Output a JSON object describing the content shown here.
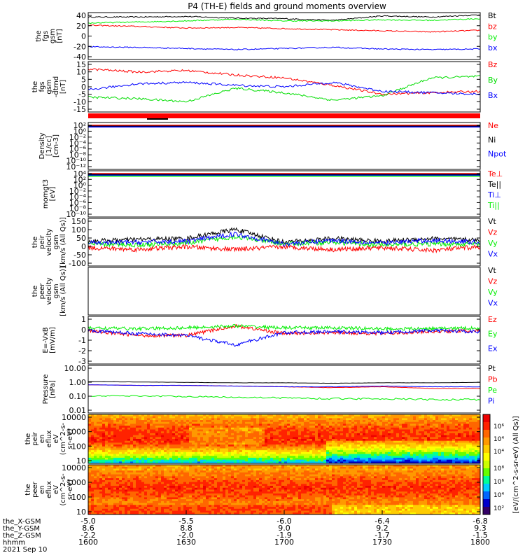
{
  "title": "P4 (TH-E) fields and ground moments overview",
  "colors": {
    "black": "#000000",
    "red": "#ff0000",
    "green": "#00ee00",
    "blue": "#0000ff",
    "mag_gsm_green": "#00dd00"
  },
  "chart_data": [
    {
      "type": "line",
      "panel": "fgs_gsm",
      "ylabel": [
        "the",
        "fgs",
        "gsm",
        "[nT]"
      ],
      "yticks": [
        "40",
        "20",
        "0",
        "-20",
        "-40"
      ],
      "ylim": [
        -40,
        45
      ],
      "x": [
        0,
        15,
        30,
        45,
        60,
        75,
        90,
        105,
        120
      ],
      "series": [
        {
          "name": "Bt",
          "color": "#000000",
          "values": [
            37,
            37,
            38,
            35,
            34,
            31,
            39,
            37,
            41
          ]
        },
        {
          "name": "bz",
          "color": "#ff0000",
          "values": [
            22,
            20,
            17,
            18,
            16,
            14,
            12,
            10,
            13
          ]
        },
        {
          "name": "by",
          "color": "#00ee00",
          "values": [
            26,
            28,
            30,
            33,
            30,
            30,
            32,
            31,
            34
          ]
        },
        {
          "name": "bx",
          "color": "#0000ff",
          "values": [
            -17,
            -18,
            -20,
            -22,
            -20,
            -18,
            -21,
            -22,
            -21
          ]
        }
      ]
    },
    {
      "type": "line",
      "panel": "fgs_gsm_detrended",
      "ylabel": [
        "the",
        "fgs",
        "gsm",
        "-dtrnd",
        "[nT]"
      ],
      "yticks": [
        "15",
        "10",
        "5",
        "0",
        "-5",
        "-10",
        "-15"
      ],
      "ylim": [
        -18,
        16
      ],
      "x": [
        0,
        15,
        30,
        45,
        60,
        75,
        90,
        105,
        120
      ],
      "series": [
        {
          "name": "Bz",
          "color": "#ff0000",
          "values": [
            11,
            9,
            10,
            7,
            5,
            0,
            -6,
            -5,
            -4
          ]
        },
        {
          "name": "By",
          "color": "#00dd00",
          "values": [
            -8,
            -9,
            -11,
            -2,
            -5,
            -10,
            -7,
            5,
            6
          ]
        },
        {
          "name": "Bx",
          "color": "#0000ff",
          "values": [
            -3,
            1,
            2,
            0,
            -1,
            2,
            -4,
            -5,
            -6
          ]
        }
      ]
    },
    {
      "type": "line",
      "panel": "density",
      "ylabel": [
        "Density",
        "[1/cc]",
        "[cm-3]"
      ],
      "yticks": [
        "10²",
        "10⁰",
        "10⁻²",
        "10⁻⁴",
        "10⁻⁶",
        "10⁻⁸",
        "10⁻¹⁰",
        "10⁻¹²"
      ],
      "ylim_log10": [
        -13,
        2.5
      ],
      "x": [
        0,
        60,
        120
      ],
      "series": [
        {
          "name": "Ne",
          "color": "#ff0000",
          "values": [
            0.6,
            0.6,
            0.6
          ]
        },
        {
          "name": "Ni",
          "color": "#000000",
          "values": [
            0.55,
            0.55,
            0.55
          ]
        },
        {
          "name": "Npot",
          "color": "#0000ff",
          "values": [
            0.5,
            0.5,
            0.5
          ]
        }
      ]
    },
    {
      "type": "line",
      "panel": "temperature",
      "ylabel": [
        "momgt3",
        "[eV]"
      ],
      "yticks": [
        "10⁴",
        "10²",
        "10⁰",
        "10⁻²",
        "10⁻⁴",
        "10⁻⁶",
        "10⁻⁸",
        "10⁻¹⁰"
      ],
      "ylim_log10": [
        -10.5,
        4.5
      ],
      "x": [
        0,
        60,
        120
      ],
      "series": [
        {
          "name": "Te⊥",
          "color": "#ff0000",
          "values": [
            4000,
            4000,
            4000
          ]
        },
        {
          "name": "Te||",
          "color": "#000000",
          "values": [
            3500,
            3500,
            3500
          ]
        },
        {
          "name": "Ti⊥",
          "color": "#0000ff",
          "values": [
            3000,
            3000,
            3000
          ]
        },
        {
          "name": "Ti||",
          "color": "#00ee00",
          "values": [
            2500,
            2500,
            2500
          ]
        }
      ]
    },
    {
      "type": "line",
      "panel": "peir_velocity",
      "ylabel": [
        "the",
        "peir",
        "velocity",
        "gsm",
        "[km/s (All Qs)]"
      ],
      "yticks": [
        "150",
        "100",
        "50",
        "0",
        "-50",
        "-100"
      ],
      "ylim": [
        -100,
        160
      ],
      "x": [
        0,
        15,
        30,
        45,
        60,
        75,
        90,
        105,
        120
      ],
      "series": [
        {
          "name": "Vt",
          "color": "#000000",
          "values": [
            35,
            45,
            50,
            100,
            30,
            50,
            35,
            50,
            40
          ]
        },
        {
          "name": "Vz",
          "color": "#ff0000",
          "values": [
            0,
            -10,
            5,
            -10,
            5,
            -10,
            0,
            -15,
            5
          ]
        },
        {
          "name": "Vy",
          "color": "#00ee00",
          "values": [
            20,
            15,
            25,
            60,
            20,
            30,
            15,
            20,
            20
          ]
        },
        {
          "name": "Vx",
          "color": "#0000ff",
          "values": [
            25,
            30,
            35,
            75,
            20,
            40,
            25,
            40,
            30
          ]
        }
      ]
    },
    {
      "type": "line",
      "panel": "peer_velocity",
      "ylabel": [
        "the",
        "peer",
        "velocity",
        "gsm",
        "[km/s (All Qs)]"
      ],
      "yticks": [],
      "x": [],
      "series": [
        {
          "name": "Vt",
          "color": "#000000",
          "values": []
        },
        {
          "name": "Vz",
          "color": "#ff0000",
          "values": []
        },
        {
          "name": "Vy",
          "color": "#00ee00",
          "values": []
        },
        {
          "name": "Vx",
          "color": "#0000ff",
          "values": []
        }
      ]
    },
    {
      "type": "line",
      "panel": "e_field",
      "ylabel": [
        "E=-VxB",
        "[mV/m]"
      ],
      "yticks": [
        "1",
        "0",
        "-1",
        "-2",
        "-3"
      ],
      "ylim": [
        -3.5,
        1.5
      ],
      "x": [
        0,
        15,
        30,
        45,
        60,
        75,
        90,
        105,
        120
      ],
      "series": [
        {
          "name": "Ez",
          "color": "#ff0000",
          "values": [
            0,
            -0.5,
            -0.5,
            0.5,
            -0.3,
            -0.2,
            -0.3,
            -0.1,
            0
          ]
        },
        {
          "name": "Ey",
          "color": "#00ee00",
          "values": [
            0.3,
            0.2,
            0.3,
            0.5,
            0.3,
            0.3,
            0.2,
            0.2,
            0.3
          ]
        },
        {
          "name": "Ex",
          "color": "#0000ff",
          "values": [
            0,
            -0.3,
            -0.5,
            -1.5,
            -0.2,
            -0.1,
            -0.2,
            0,
            -0.1
          ]
        }
      ]
    },
    {
      "type": "line",
      "panel": "pressure",
      "ylabel": [
        "Pressure",
        "[nPa]"
      ],
      "yticks": [
        "10.00",
        "1.00",
        "0.10",
        "0.01"
      ],
      "ylim_log10": [
        -2,
        1
      ],
      "x": [
        0,
        15,
        30,
        45,
        60,
        75,
        90,
        105,
        120
      ],
      "series": [
        {
          "name": "Pt",
          "color": "#000000",
          "values": [
            0.95,
            0.9,
            0.85,
            0.8,
            0.8,
            0.75,
            0.8,
            0.8,
            0.85
          ]
        },
        {
          "name": "Pb",
          "color": "#ff0000",
          "values": [
            0.6,
            0.55,
            0.55,
            0.5,
            0.45,
            0.4,
            0.45,
            0.35,
            0.35
          ]
        },
        {
          "name": "Pe",
          "color": "#00ee00",
          "values": [
            0.12,
            0.12,
            0.11,
            0.1,
            0.09,
            0.08,
            0.08,
            0.07,
            0.07
          ]
        },
        {
          "name": "Pi",
          "color": "#0000ff",
          "values": [
            0.6,
            0.55,
            0.55,
            0.5,
            0.45,
            0.45,
            0.5,
            0.45,
            0.45
          ]
        }
      ]
    },
    {
      "type": "heatmap",
      "panel": "peir_en_eflux",
      "ylabel": [
        "the",
        "peir",
        "en",
        "eflux",
        "eV",
        "(cm^2-s-",
        "sr-eV)"
      ],
      "yticks": [
        "10000",
        "1000",
        "100",
        "10"
      ],
      "ylim": [
        5,
        20000
      ]
    },
    {
      "type": "heatmap",
      "panel": "peer_en_eflux",
      "ylabel": [
        "the",
        "peer",
        "en",
        "eflux",
        "eV",
        "(cm^2-s-",
        "sr-eV)"
      ],
      "yticks": [
        "10000",
        "1000",
        "100",
        "10"
      ],
      "ylim": [
        5,
        20000
      ]
    }
  ],
  "colorbar": {
    "label": "[eV/(cm^2-s-sr-eV) (All Qs)]",
    "ticks_top": [
      "10⁶",
      "10⁴",
      "10⁴"
    ],
    "ticks_bottom": [
      "10⁸",
      "10⁶",
      "10⁴",
      "10²"
    ]
  },
  "x_axis": {
    "row_labels": [
      "the_X-GSM",
      "the_Y-GSM",
      "the_Z-GSM",
      "hhmm",
      "2021 Sep 10"
    ],
    "rows": [
      [
        "-5.0",
        "-5.5",
        "-6.0",
        "-6.4",
        "-6.8"
      ],
      [
        "8.6",
        "8.8",
        "9.0",
        "9.2",
        "9.3"
      ],
      [
        "-2.2",
        "-2.0",
        "-1.9",
        "-1.7",
        "-1.5"
      ],
      [
        "1600",
        "1630",
        "1700",
        "1730",
        "1800"
      ]
    ]
  }
}
